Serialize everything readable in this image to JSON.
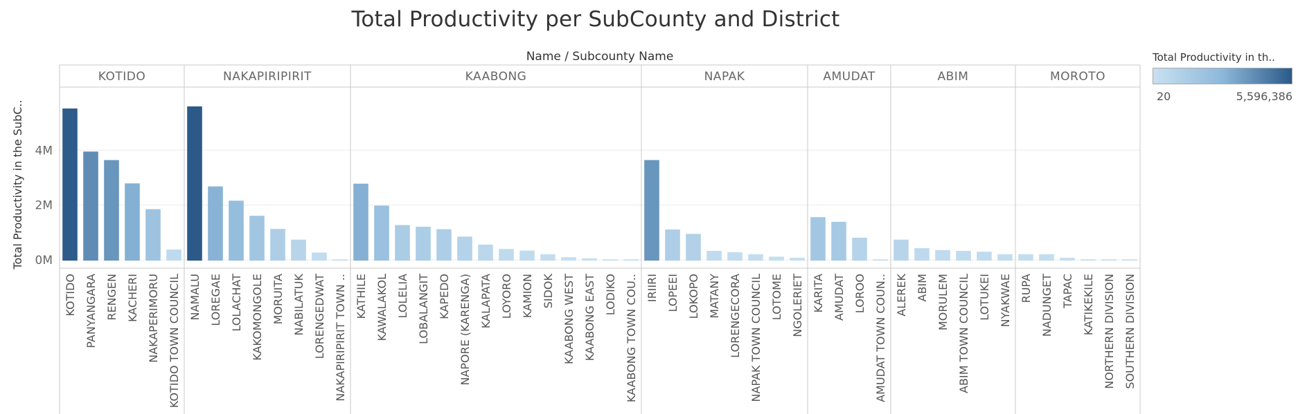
{
  "chart_data": {
    "type": "bar",
    "title": "Total Productivity per SubCounty and District",
    "column_header": "Name  /  Subcounty Name",
    "ylabel": "Total Productivity in the SubC..",
    "ylim": [
      -300000,
      6300000
    ],
    "y_ticks": [
      {
        "value": 0,
        "label": "0M"
      },
      {
        "value": 2000000,
        "label": "2M"
      },
      {
        "value": 4000000,
        "label": "4M"
      }
    ],
    "color_range": [
      20,
      5596386
    ],
    "legend": {
      "title": "Total Productivity in th..",
      "min_label": "20",
      "max_label": "5,596,386"
    },
    "groups": [
      {
        "name": "KOTIDO",
        "subcounties": [
          {
            "name": "KOTIDO",
            "value": 5520000
          },
          {
            "name": "PANYANGARA",
            "value": 3950000
          },
          {
            "name": "RENGEN",
            "value": 3640000
          },
          {
            "name": "KACHERI",
            "value": 2790000
          },
          {
            "name": "NAKAPERIMORU",
            "value": 1850000
          },
          {
            "name": "KOTIDO TOWN COUNCIL",
            "value": 380000
          }
        ]
      },
      {
        "name": "NAKAPIRIPIRIT",
        "subcounties": [
          {
            "name": "NAMALU",
            "value": 5596386
          },
          {
            "name": "LOREGAE",
            "value": 2680000
          },
          {
            "name": "LOLACHAT",
            "value": 2160000
          },
          {
            "name": "KAKOMONGOLE",
            "value": 1610000
          },
          {
            "name": "MORUITA",
            "value": 1130000
          },
          {
            "name": "NABILATUK",
            "value": 740000
          },
          {
            "name": "LORENGEDWAT",
            "value": 270000
          },
          {
            "name": "NAKAPIRIPIRIT TOWN ..",
            "value": 20
          }
        ]
      },
      {
        "name": "KAABONG",
        "subcounties": [
          {
            "name": "KATHILE",
            "value": 2780000
          },
          {
            "name": "KAWALAKOL",
            "value": 1980000
          },
          {
            "name": "LOLELIA",
            "value": 1270000
          },
          {
            "name": "LOBALANGIT",
            "value": 1210000
          },
          {
            "name": "KAPEDO",
            "value": 1120000
          },
          {
            "name": "NAPORE (KARENGA)",
            "value": 850000
          },
          {
            "name": "KALAPATA",
            "value": 560000
          },
          {
            "name": "LOYORO",
            "value": 400000
          },
          {
            "name": "KAMION",
            "value": 340000
          },
          {
            "name": "SIDOK",
            "value": 210000
          },
          {
            "name": "KAABONG WEST",
            "value": 100000
          },
          {
            "name": "KAABONG EAST",
            "value": 60000
          },
          {
            "name": "LODIKO",
            "value": 20000
          },
          {
            "name": "KAABONG TOWN COU..",
            "value": 10000
          }
        ]
      },
      {
        "name": "NAPAK",
        "subcounties": [
          {
            "name": "IRIIRI",
            "value": 3640000
          },
          {
            "name": "LOPEEI",
            "value": 1110000
          },
          {
            "name": "LOKOPO",
            "value": 950000
          },
          {
            "name": "MATANY",
            "value": 330000
          },
          {
            "name": "LORENGECORA",
            "value": 280000
          },
          {
            "name": "NAPAK TOWN COUNCIL",
            "value": 210000
          },
          {
            "name": "LOTOME",
            "value": 120000
          },
          {
            "name": "NGOLERIET",
            "value": 80000
          }
        ]
      },
      {
        "name": "AMUDAT",
        "subcounties": [
          {
            "name": "KARITA",
            "value": 1560000
          },
          {
            "name": "AMUDAT",
            "value": 1390000
          },
          {
            "name": "LOROO",
            "value": 810000
          },
          {
            "name": "AMUDAT TOWN COUN..",
            "value": 20
          }
        ]
      },
      {
        "name": "ABIM",
        "subcounties": [
          {
            "name": "ALEREK",
            "value": 740000
          },
          {
            "name": "ABIM",
            "value": 430000
          },
          {
            "name": "MORULEM",
            "value": 360000
          },
          {
            "name": "ABIM TOWN COUNCIL",
            "value": 330000
          },
          {
            "name": "LOTUKEI",
            "value": 300000
          },
          {
            "name": "NYAKWAE",
            "value": 210000
          }
        ]
      },
      {
        "name": "MOROTO",
        "subcounties": [
          {
            "name": "RUPA",
            "value": 210000
          },
          {
            "name": "NADUNGET",
            "value": 210000
          },
          {
            "name": "TAPAC",
            "value": 80000
          },
          {
            "name": "KATIKEKILE",
            "value": 20000
          },
          {
            "name": "NORTHERN DIVISION",
            "value": 20
          },
          {
            "name": "SOUTHERN DIVISION",
            "value": 20
          }
        ]
      }
    ],
    "color_scale": {
      "low": "#c8e0f1",
      "mid": "#8db8da",
      "high": "#2b5a89"
    },
    "grid": true,
    "legend_position": "top-right"
  }
}
